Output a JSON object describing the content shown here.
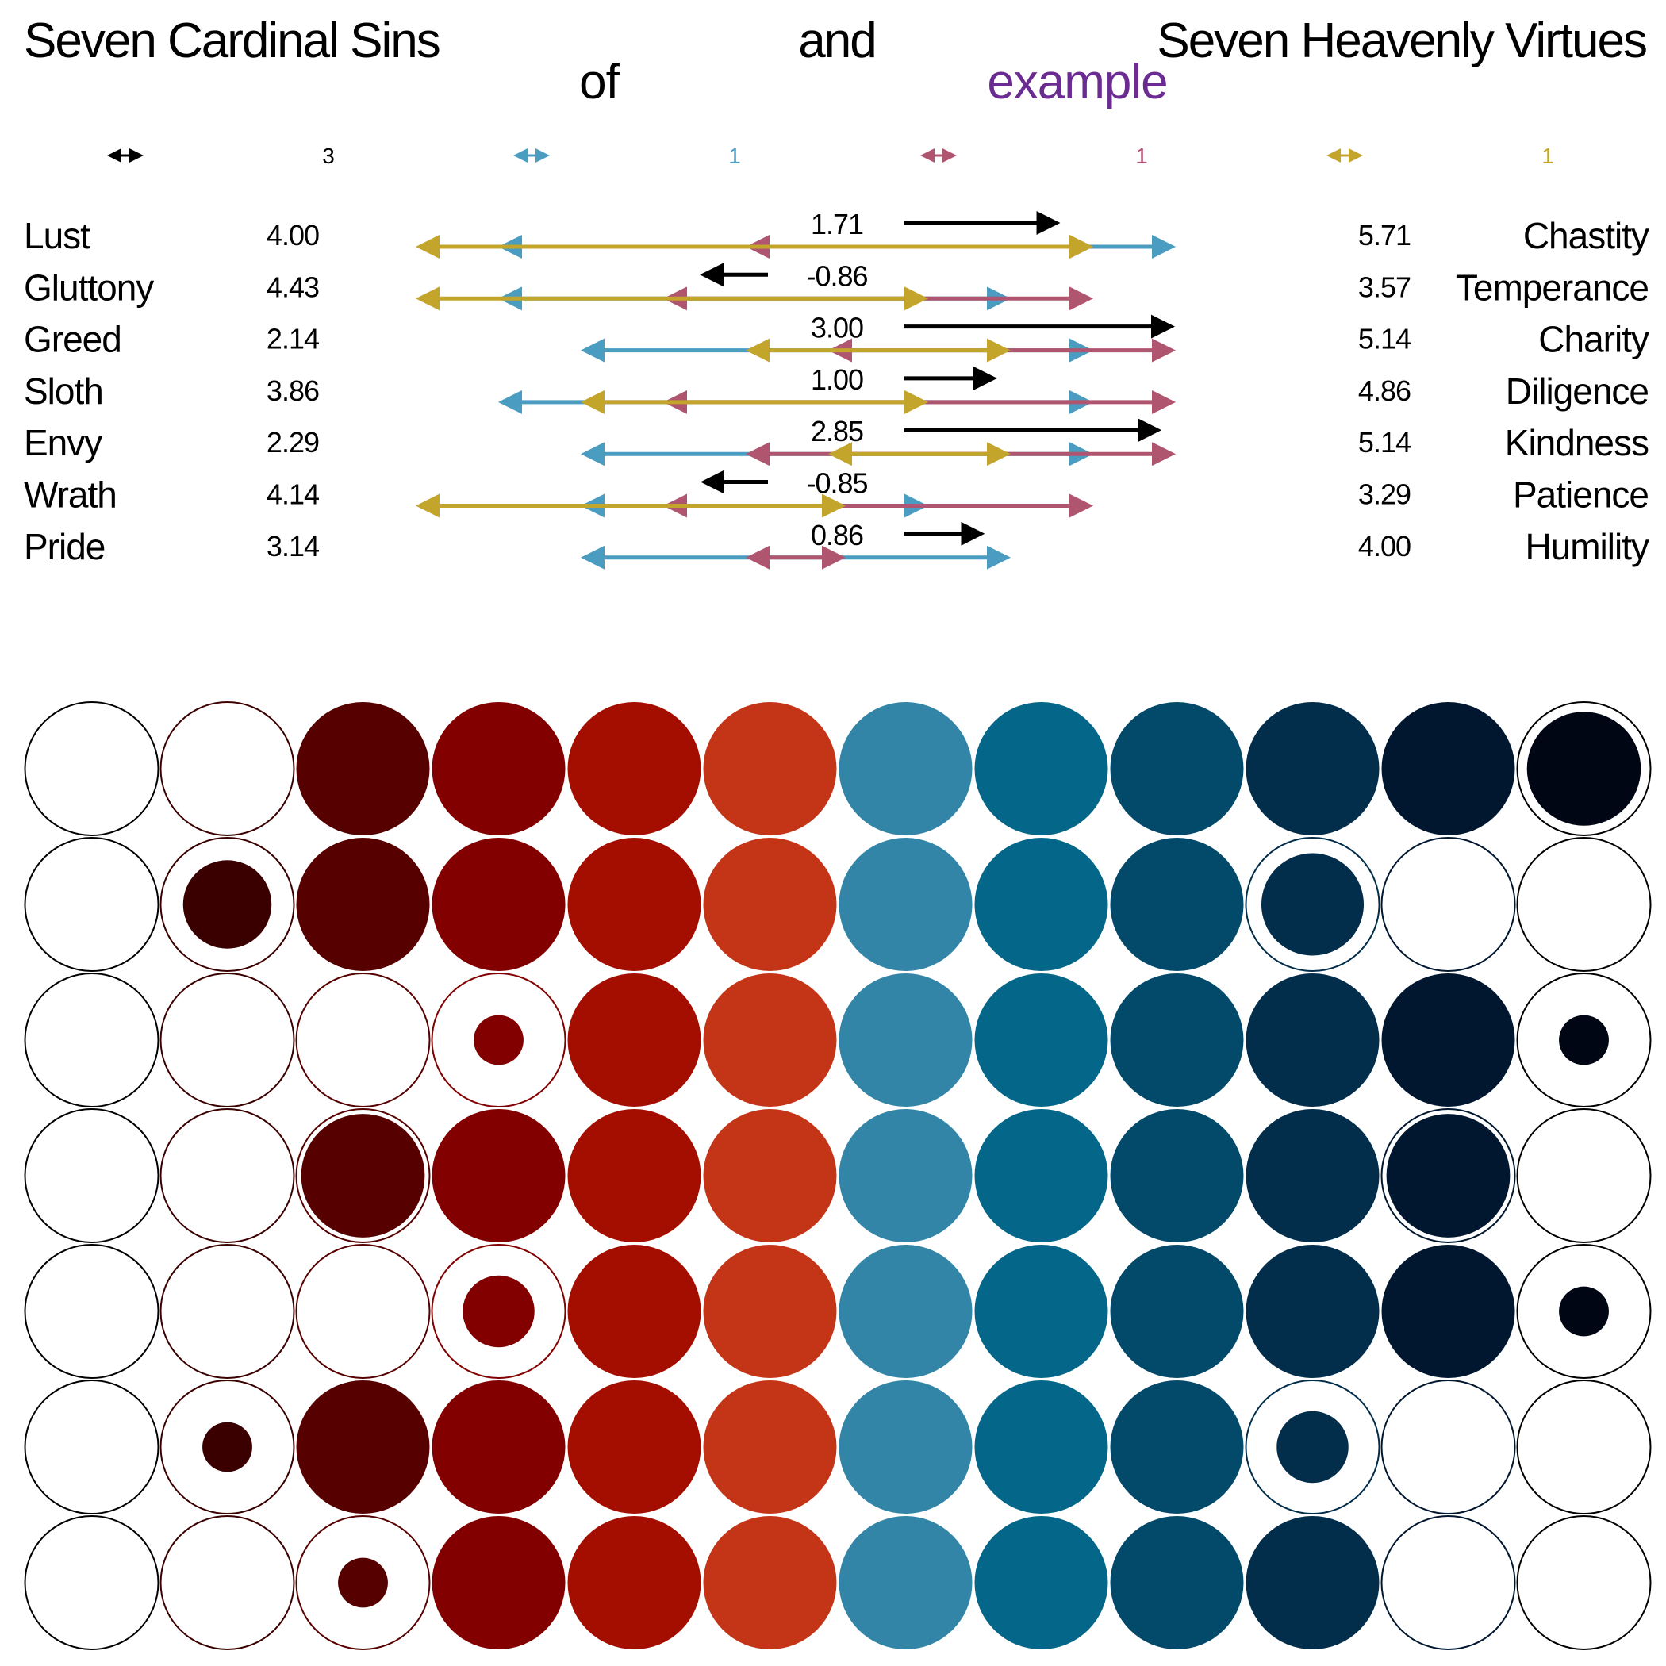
{
  "header": {
    "left_title": "Seven Cardinal Sins",
    "conjunction": "and",
    "right_title": "Seven Heavenly Virtues",
    "of_word": "of",
    "subject_name": "example"
  },
  "colors": {
    "text": "#000000",
    "subject": "#6a2c91",
    "teal": "#4a9cc0",
    "rose": "#b0556f",
    "gold": "#c4a52c",
    "sin_scale": [
      "#3a0000",
      "#560000",
      "#820000",
      "#a30e00",
      "#c43518"
    ],
    "virtue_scale": [
      "#3385a8",
      "#046688",
      "#034a6a",
      "#022e4c",
      "#01172f",
      "#000614"
    ]
  },
  "legend": [
    {
      "icon": "black-double-arrow",
      "color": "#000000",
      "value": "3"
    },
    {
      "icon": "teal-double-arrow",
      "color": "#4a9cc0",
      "value": "1"
    },
    {
      "icon": "rose-double-arrow",
      "color": "#b0556f",
      "value": "1"
    },
    {
      "icon": "gold-double-arrow",
      "color": "#c4a52c",
      "value": "1"
    }
  ],
  "chart_data": {
    "type": "range-arrows-and-dot-matrix",
    "axis": {
      "min": -4,
      "max": 4,
      "center": 0
    },
    "rows": [
      {
        "sin": "Lust",
        "sin_value": "4.00",
        "diff": "1.71",
        "virtue_value": "5.71",
        "virtue": "Chastity",
        "teal": [
          -4,
          4
        ],
        "rose": [
          -1,
          3
        ],
        "gold": [
          -5,
          3
        ],
        "arrow": 1.71
      },
      {
        "sin": "Gluttony",
        "sin_value": "4.43",
        "diff": "-0.86",
        "virtue_value": "3.57",
        "virtue": "Temperance",
        "teal": [
          -4,
          2
        ],
        "rose": [
          -2,
          3
        ],
        "gold": [
          -5,
          1
        ],
        "arrow": -0.86
      },
      {
        "sin": "Greed",
        "sin_value": "2.14",
        "diff": "3.00",
        "virtue_value": "5.14",
        "virtue": "Charity",
        "teal": [
          -3,
          3
        ],
        "rose": [
          0,
          4
        ],
        "gold": [
          -1,
          2
        ],
        "arrow": 3.0
      },
      {
        "sin": "Sloth",
        "sin_value": "3.86",
        "diff": "1.00",
        "virtue_value": "4.86",
        "virtue": "Diligence",
        "teal": [
          -4,
          3
        ],
        "rose": [
          -2,
          4
        ],
        "gold": [
          -3,
          1
        ],
        "arrow": 1.0
      },
      {
        "sin": "Envy",
        "sin_value": "2.29",
        "diff": "2.85",
        "virtue_value": "5.14",
        "virtue": "Kindness",
        "teal": [
          -3,
          3
        ],
        "rose": [
          -1,
          4
        ],
        "gold": [
          0,
          2
        ],
        "arrow": 2.85
      },
      {
        "sin": "Wrath",
        "sin_value": "4.14",
        "diff": "-0.85",
        "virtue_value": "3.29",
        "virtue": "Patience",
        "teal": [
          -3,
          1
        ],
        "rose": [
          -2,
          3
        ],
        "gold": [
          -5,
          0
        ],
        "arrow": -0.85
      },
      {
        "sin": "Pride",
        "sin_value": "3.14",
        "diff": "0.86",
        "virtue_value": "4.00",
        "virtue": "Humility",
        "teal": [
          -3,
          2
        ],
        "rose": [
          -1,
          0
        ],
        "gold": null,
        "arrow": 0.86
      }
    ],
    "matrix_columns": [
      "-6",
      "-5",
      "-4",
      "-3",
      "-2",
      "-1",
      "1",
      "2",
      "3",
      "4",
      "5",
      "6"
    ],
    "matrix": [
      [
        0,
        0,
        1,
        1,
        1,
        1,
        1,
        1,
        1,
        1,
        1,
        0.73
      ],
      [
        0,
        0.44,
        1,
        1,
        1,
        1,
        1,
        1,
        1,
        0.59,
        0,
        0
      ],
      [
        0,
        0,
        0,
        0.14,
        1,
        1,
        1,
        1,
        1,
        1,
        1,
        0.14
      ],
      [
        0,
        0,
        0.86,
        1,
        1,
        1,
        1,
        1,
        1,
        1,
        0.86,
        0
      ],
      [
        0,
        0,
        0,
        0.29,
        1,
        1,
        1,
        1,
        1,
        1,
        1,
        0.14
      ],
      [
        0,
        0.14,
        1,
        1,
        1,
        1,
        1,
        1,
        1,
        0.29,
        0,
        0
      ],
      [
        0,
        0,
        0.14,
        1,
        1,
        1,
        1,
        1,
        1,
        1,
        0,
        0
      ]
    ]
  }
}
